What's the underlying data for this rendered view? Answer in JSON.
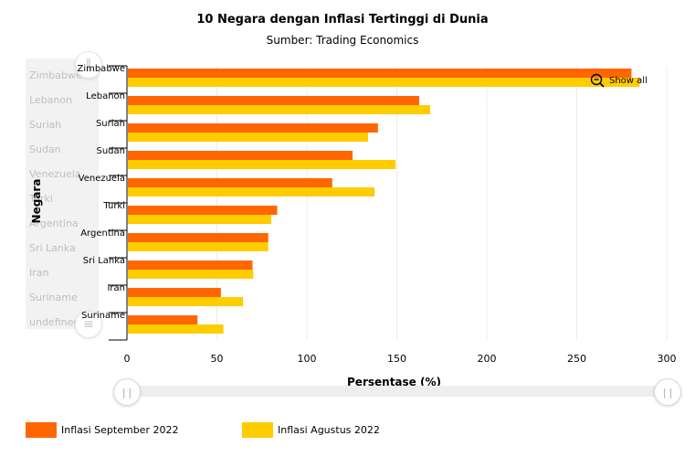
{
  "chart_data": {
    "type": "bar",
    "orientation": "horizontal",
    "title": "10 Negara dengan Inflasi Tertinggi di Dunia",
    "subtitle": "Sumber: Trading Economics",
    "xlabel": "Persentase (%)",
    "ylabel": "Negara",
    "xlim": [
      0,
      300
    ],
    "xticks": [
      "0",
      "50",
      "100",
      "150",
      "200",
      "250",
      "300"
    ],
    "grid": true,
    "legend_position": "bottom",
    "categories": [
      "Zimbabwe",
      "Lebanon",
      "Suriah",
      "Sudan",
      "Venezuela",
      "Turki",
      "Argentina",
      "Sri Lanka",
      "Iran",
      "Suriname"
    ],
    "series": [
      {
        "name": "Inflasi September 2022",
        "color": "#ff6600",
        "values": [
          280.4,
          162.4,
          139.5,
          125.4,
          114.1,
          83.5,
          78.5,
          69.8,
          52.2,
          39.2
        ]
      },
      {
        "name": "Inflasi Agustus 2022",
        "color": "#ffcc00",
        "values": [
          285,
          168.5,
          134,
          149.3,
          137.6,
          80.2,
          78.5,
          70.2,
          64.5,
          53.6
        ]
      }
    ]
  },
  "controls": {
    "show_all_label": "Show all",
    "scrollbar_ghost_labels": [
      "Zimbabwe",
      "Lebanon",
      "Suriah",
      "Sudan",
      "Venezuela",
      "Turki",
      "Argentina",
      "Sri Lanka",
      "Iran",
      "Suriname",
      "undefined"
    ],
    "handle_glyph": "||"
  }
}
